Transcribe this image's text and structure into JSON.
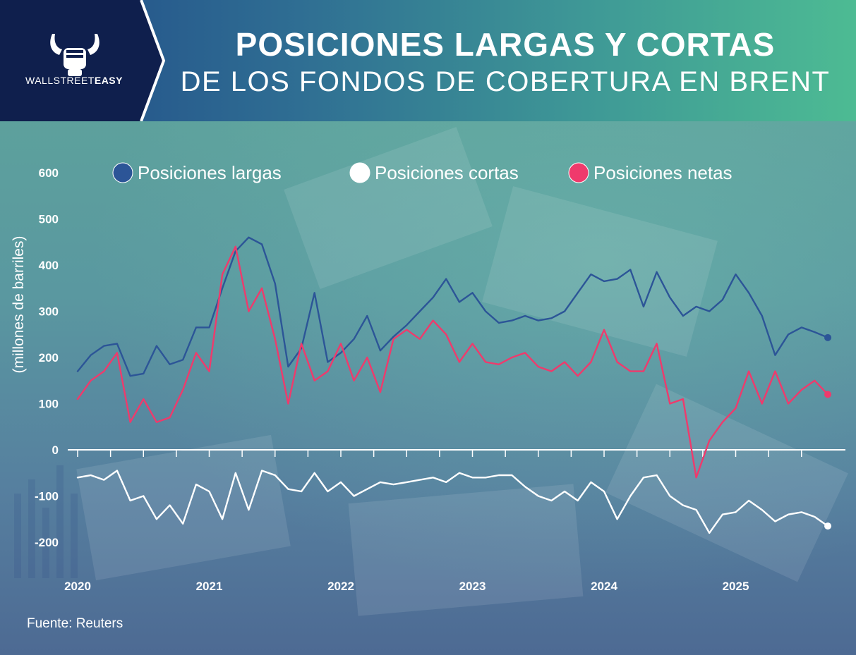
{
  "header": {
    "title": "POSICIONES LARGAS Y CORTAS",
    "subtitle": "DE LOS FONDOS DE COBERTURA EN BRENT",
    "brand_light": "WALLSTREET",
    "brand_bold": "EASY"
  },
  "footer": {
    "source": "Fuente: Reuters"
  },
  "colors": {
    "longs": "#2c5597",
    "shorts": "#ffffff",
    "net": "#ef3a6c",
    "header_left": "#0f1f4d"
  },
  "chart_data": {
    "type": "line",
    "title": "POSICIONES LARGAS Y CORTAS DE LOS FONDOS DE COBERTURA EN BRENT",
    "ylabel": "(millones de barriles)",
    "xlabel": "",
    "ylim": [
      -200,
      600
    ],
    "xlim": [
      2020.0,
      2025.75
    ],
    "yticks": [
      600,
      500,
      400,
      300,
      200,
      100,
      0,
      -100,
      -200
    ],
    "xticks": [
      "2020",
      "2021",
      "2022",
      "2023",
      "2024",
      "2025"
    ],
    "legend_position": "top",
    "grid": false,
    "series": [
      {
        "name": "Posiciones largas",
        "color": "#2c5597",
        "x": [
          2020.0,
          2020.1,
          2020.2,
          2020.3,
          2020.4,
          2020.5,
          2020.6,
          2020.7,
          2020.8,
          2020.9,
          2021.0,
          2021.1,
          2021.2,
          2021.3,
          2021.4,
          2021.5,
          2021.6,
          2021.7,
          2021.8,
          2021.9,
          2022.0,
          2022.1,
          2022.2,
          2022.3,
          2022.4,
          2022.5,
          2022.6,
          2022.7,
          2022.8,
          2022.9,
          2023.0,
          2023.1,
          2023.2,
          2023.3,
          2023.4,
          2023.5,
          2023.6,
          2023.7,
          2023.8,
          2023.9,
          2024.0,
          2024.1,
          2024.2,
          2024.3,
          2024.4,
          2024.5,
          2024.6,
          2024.7,
          2024.8,
          2024.9,
          2025.0,
          2025.1,
          2025.2,
          2025.3,
          2025.4,
          2025.5,
          2025.6,
          2025.7
        ],
        "values": [
          170,
          205,
          225,
          230,
          160,
          165,
          225,
          185,
          195,
          265,
          265,
          350,
          430,
          460,
          445,
          360,
          180,
          220,
          340,
          190,
          210,
          240,
          290,
          215,
          245,
          270,
          300,
          330,
          370,
          320,
          340,
          300,
          275,
          280,
          290,
          280,
          285,
          300,
          340,
          380,
          365,
          370,
          390,
          310,
          385,
          330,
          290,
          310,
          300,
          325,
          380,
          340,
          290,
          205,
          250,
          265,
          255,
          243
        ]
      },
      {
        "name": "Posiciones cortas",
        "color": "#ffffff",
        "x": [
          2020.0,
          2020.1,
          2020.2,
          2020.3,
          2020.4,
          2020.5,
          2020.6,
          2020.7,
          2020.8,
          2020.9,
          2021.0,
          2021.1,
          2021.2,
          2021.3,
          2021.4,
          2021.5,
          2021.6,
          2021.7,
          2021.8,
          2021.9,
          2022.0,
          2022.1,
          2022.2,
          2022.3,
          2022.4,
          2022.5,
          2022.6,
          2022.7,
          2022.8,
          2022.9,
          2023.0,
          2023.1,
          2023.2,
          2023.3,
          2023.4,
          2023.5,
          2023.6,
          2023.7,
          2023.8,
          2023.9,
          2024.0,
          2024.1,
          2024.2,
          2024.3,
          2024.4,
          2024.5,
          2024.6,
          2024.7,
          2024.8,
          2024.9,
          2025.0,
          2025.1,
          2025.2,
          2025.3,
          2025.4,
          2025.5,
          2025.6,
          2025.7
        ],
        "values": [
          -60,
          -55,
          -65,
          -45,
          -110,
          -100,
          -150,
          -120,
          -160,
          -75,
          -90,
          -150,
          -50,
          -130,
          -45,
          -55,
          -85,
          -90,
          -50,
          -90,
          -70,
          -100,
          -85,
          -70,
          -75,
          -70,
          -65,
          -60,
          -70,
          -50,
          -60,
          -60,
          -55,
          -55,
          -80,
          -100,
          -110,
          -90,
          -110,
          -70,
          -90,
          -150,
          -100,
          -60,
          -55,
          -100,
          -120,
          -130,
          -180,
          -140,
          -135,
          -110,
          -130,
          -155,
          -140,
          -135,
          -145,
          -165
        ]
      },
      {
        "name": "Posiciones netas",
        "color": "#ef3a6c",
        "x": [
          2020.0,
          2020.1,
          2020.2,
          2020.3,
          2020.4,
          2020.5,
          2020.6,
          2020.7,
          2020.8,
          2020.9,
          2021.0,
          2021.1,
          2021.2,
          2021.3,
          2021.4,
          2021.5,
          2021.6,
          2021.7,
          2021.8,
          2021.9,
          2022.0,
          2022.1,
          2022.2,
          2022.3,
          2022.4,
          2022.5,
          2022.6,
          2022.7,
          2022.8,
          2022.9,
          2023.0,
          2023.1,
          2023.2,
          2023.3,
          2023.4,
          2023.5,
          2023.6,
          2023.7,
          2023.8,
          2023.9,
          2024.0,
          2024.1,
          2024.2,
          2024.3,
          2024.4,
          2024.5,
          2024.6,
          2024.7,
          2024.8,
          2024.9,
          2025.0,
          2025.1,
          2025.2,
          2025.3,
          2025.4,
          2025.5,
          2025.6,
          2025.7
        ],
        "values": [
          110,
          150,
          170,
          210,
          60,
          110,
          60,
          70,
          130,
          210,
          170,
          380,
          440,
          300,
          350,
          240,
          100,
          230,
          150,
          170,
          230,
          150,
          200,
          125,
          240,
          260,
          240,
          280,
          250,
          190,
          230,
          190,
          185,
          200,
          210,
          180,
          170,
          190,
          160,
          190,
          260,
          190,
          170,
          170,
          230,
          100,
          110,
          -60,
          20,
          60,
          90,
          170,
          100,
          170,
          100,
          130,
          150,
          120
        ]
      }
    ]
  }
}
